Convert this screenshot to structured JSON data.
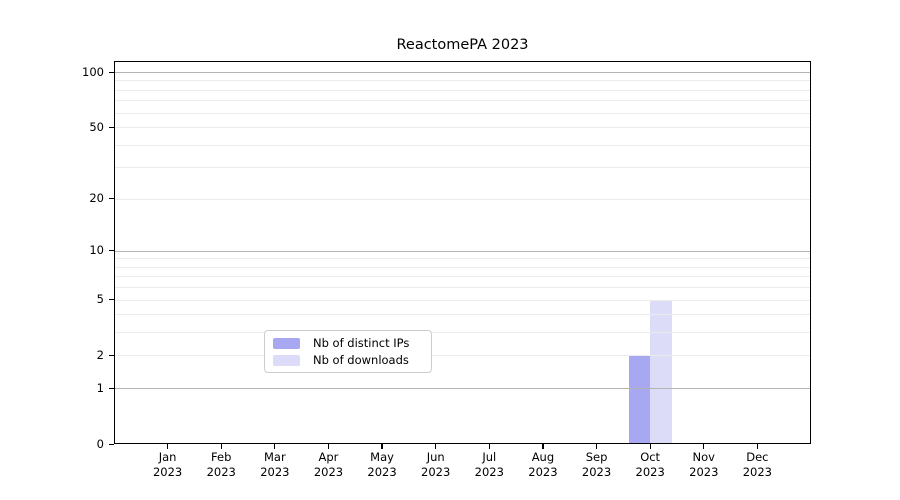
{
  "chart_data": {
    "type": "bar",
    "title": "ReactomePA 2023",
    "categories": [
      "Jan",
      "Feb",
      "Mar",
      "Apr",
      "May",
      "Jun",
      "Jul",
      "Aug",
      "Sep",
      "Oct",
      "Nov",
      "Dec"
    ],
    "x_year": "2023",
    "series": [
      {
        "name": "Nb of distinct IPs",
        "color": "#a8a8f2",
        "values": [
          0,
          0,
          0,
          0,
          0,
          0,
          0,
          0,
          0,
          2,
          0,
          0
        ]
      },
      {
        "name": "Nb of downloads",
        "color": "#dcdcf8",
        "values": [
          0,
          0,
          0,
          0,
          0,
          0,
          0,
          0,
          0,
          5,
          0,
          0
        ]
      }
    ],
    "yticks": [
      0,
      1,
      2,
      5,
      10,
      20,
      50,
      100
    ],
    "yscale": "log1p",
    "ylim": [
      0,
      115
    ],
    "xlabel": "",
    "ylabel": "",
    "grid": {
      "major_values": [
        1,
        10,
        100
      ],
      "minor_values": [
        2,
        3,
        4,
        5,
        6,
        7,
        8,
        9,
        20,
        30,
        40,
        50,
        60,
        70,
        80,
        90
      ],
      "major_color": "#b3b3b3",
      "minor_color": "#ebebeb"
    },
    "legend_position": "lower center"
  },
  "colors": {
    "background": "#ffffff",
    "text": "#000000",
    "spine": "#000000"
  }
}
